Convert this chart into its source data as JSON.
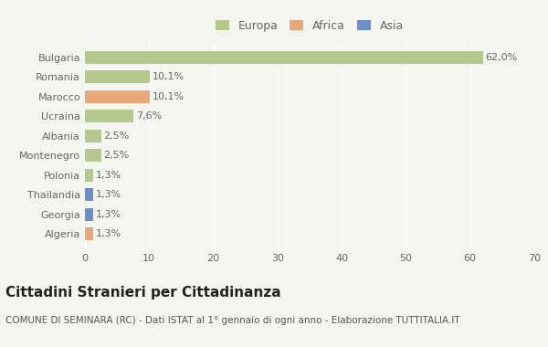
{
  "categories": [
    "Bulgaria",
    "Romania",
    "Marocco",
    "Ucraina",
    "Albania",
    "Montenegro",
    "Polonia",
    "Thailandia",
    "Georgia",
    "Algeria"
  ],
  "values": [
    62.0,
    10.1,
    10.1,
    7.6,
    2.5,
    2.5,
    1.3,
    1.3,
    1.3,
    1.3
  ],
  "labels": [
    "62,0%",
    "10,1%",
    "10,1%",
    "7,6%",
    "2,5%",
    "2,5%",
    "1,3%",
    "1,3%",
    "1,3%",
    "1,3%"
  ],
  "colors": [
    "#b5c98e",
    "#b5c98e",
    "#e8a87c",
    "#b5c98e",
    "#b5c98e",
    "#b5c98e",
    "#b5c98e",
    "#6b8fc4",
    "#6b8fc4",
    "#e8a87c"
  ],
  "continent": [
    "Europa",
    "Europa",
    "Africa",
    "Europa",
    "Europa",
    "Europa",
    "Europa",
    "Asia",
    "Asia",
    "Africa"
  ],
  "legend_labels": [
    "Europa",
    "Africa",
    "Asia"
  ],
  "legend_colors": [
    "#b5c98e",
    "#e8a87c",
    "#6b8fc4"
  ],
  "xlim": [
    0,
    70
  ],
  "xticks": [
    0,
    10,
    20,
    30,
    40,
    50,
    60,
    70
  ],
  "title": "Cittadini Stranieri per Cittadinanza",
  "subtitle": "COMUNE DI SEMINARA (RC) - Dati ISTAT al 1° gennaio di ogni anno - Elaborazione TUTTITALIA.IT",
  "background_color": "#f5f5f0",
  "grid_color": "#ffffff",
  "bar_height": 0.65,
  "title_fontsize": 11,
  "subtitle_fontsize": 7.5,
  "label_fontsize": 8,
  "tick_fontsize": 8,
  "legend_fontsize": 9
}
